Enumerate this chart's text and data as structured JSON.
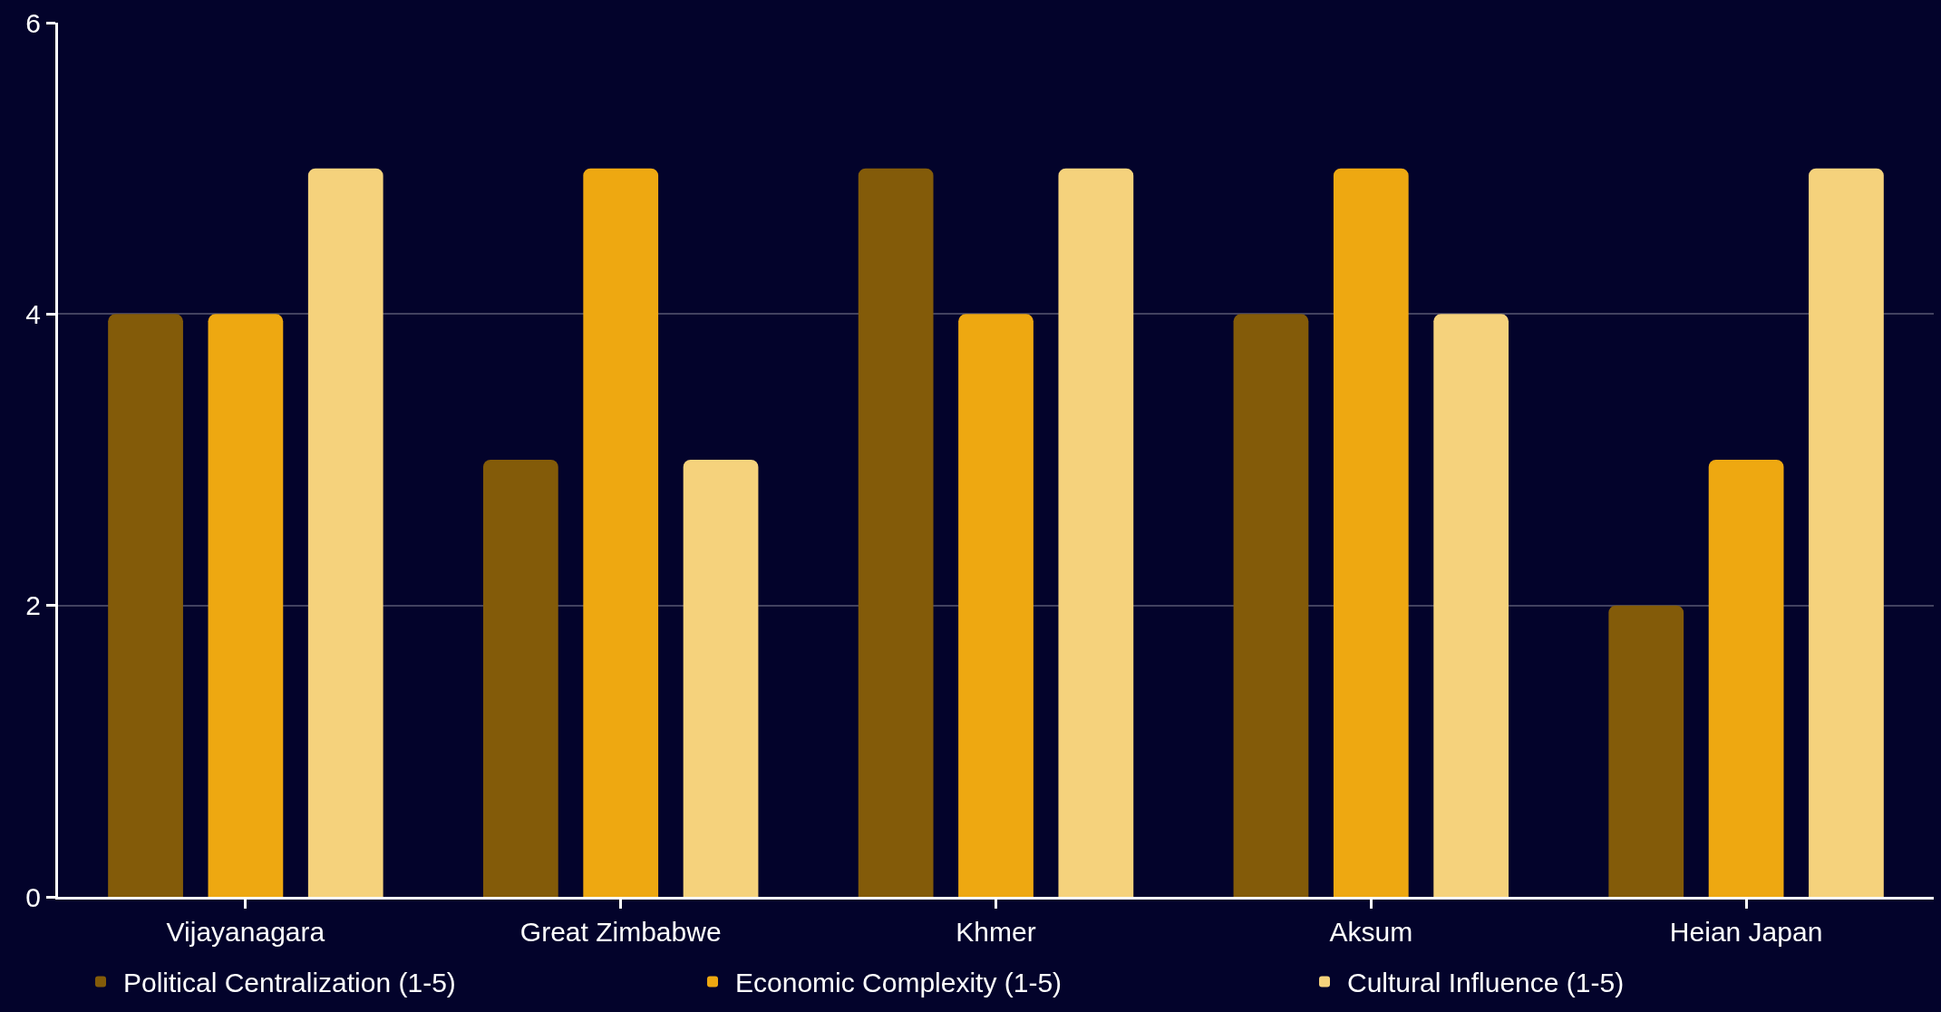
{
  "chart_data": {
    "type": "bar",
    "categories": [
      "Vijayanagara",
      "Great Zimbabwe",
      "Khmer",
      "Aksum",
      "Heian Japan"
    ],
    "series": [
      {
        "name": "Political Centralization (1-5)",
        "color": "#835b09",
        "values": [
          4,
          3,
          5,
          4,
          2
        ]
      },
      {
        "name": "Economic Complexity (1-5)",
        "color": "#eea811",
        "values": [
          4,
          5,
          4,
          5,
          3
        ]
      },
      {
        "name": "Cultural Influence (1-5)",
        "color": "#f5d27c",
        "values": [
          5,
          3,
          5,
          4,
          5
        ]
      }
    ],
    "ylim": [
      0,
      6
    ],
    "yticks": [
      0,
      2,
      4,
      6
    ],
    "grid": "y",
    "legend": "bottom"
  }
}
